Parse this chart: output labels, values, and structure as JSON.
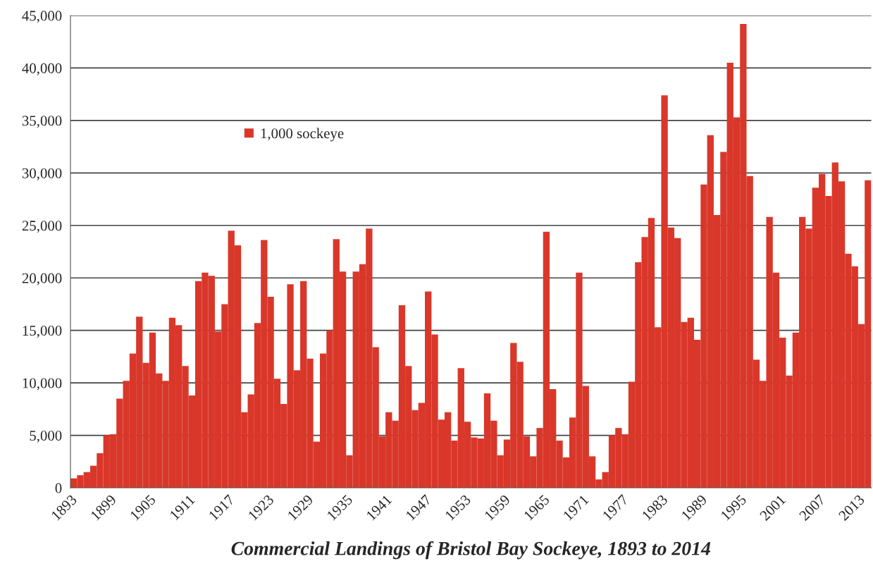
{
  "chart_data": {
    "type": "bar",
    "xlabel": "Commercial Landings of Bristol Bay Sockeye, 1893 to 2014",
    "categories": [
      "1893",
      null,
      null,
      null,
      null,
      null,
      "1899",
      null,
      null,
      null,
      null,
      null,
      "1905",
      null,
      null,
      null,
      null,
      null,
      "1911",
      null,
      null,
      null,
      null,
      null,
      "1917",
      null,
      null,
      null,
      null,
      null,
      "1923",
      null,
      null,
      null,
      null,
      null,
      "1929",
      null,
      null,
      null,
      null,
      null,
      "1935",
      null,
      null,
      null,
      null,
      null,
      "1941",
      null,
      null,
      null,
      null,
      null,
      "1947",
      null,
      null,
      null,
      null,
      null,
      "1953",
      null,
      null,
      null,
      null,
      null,
      "1959",
      null,
      null,
      null,
      null,
      null,
      "1965",
      null,
      null,
      null,
      null,
      null,
      "1971",
      null,
      null,
      null,
      null,
      null,
      "1977",
      null,
      null,
      null,
      null,
      null,
      "1983",
      null,
      null,
      null,
      null,
      null,
      "1989",
      null,
      null,
      null,
      null,
      null,
      "1995",
      null,
      null,
      null,
      null,
      null,
      "2001",
      null,
      null,
      null,
      null,
      null,
      "2007",
      null,
      null,
      null,
      null,
      null,
      "2013",
      null
    ],
    "series": [
      {
        "name": "1,000 sockeye",
        "color": "#d9372a",
        "values": [
          900,
          1200,
          1500,
          2100,
          3300,
          5000,
          5100,
          8500,
          10200,
          12800,
          16300,
          11900,
          14800,
          10900,
          10200,
          16200,
          15500,
          11600,
          8800,
          19700,
          20500,
          20200,
          14900,
          17500,
          24500,
          23100,
          7200,
          8900,
          15700,
          23600,
          18200,
          10400,
          8000,
          19400,
          11200,
          19700,
          12300,
          4400,
          12800,
          15000,
          23700,
          20600,
          3100,
          20600,
          21300,
          24700,
          13400,
          4900,
          7200,
          6400,
          17400,
          11600,
          7400,
          8100,
          18700,
          14600,
          6500,
          7200,
          4500,
          11400,
          6300,
          4800,
          4700,
          9000,
          6400,
          3100,
          4600,
          13800,
          12000,
          4900,
          3000,
          5700,
          24400,
          9400,
          4500,
          2900,
          6700,
          20500,
          9700,
          3000,
          800,
          1500,
          5000,
          5700,
          5100,
          10100,
          21500,
          23900,
          25700,
          15300,
          37400,
          24800,
          23800,
          15800,
          16200,
          14100,
          28900,
          33600,
          26000,
          32000,
          40500,
          35300,
          44200,
          29700,
          12200,
          10200,
          25800,
          20500,
          14300,
          10700,
          14800,
          25800,
          24700,
          28600,
          29900,
          27800,
          31000,
          29200,
          22300,
          21100,
          15600,
          29300
        ]
      }
    ],
    "ylim": [
      0,
      45000
    ],
    "yticks": [
      {
        "value": 0,
        "label": "0"
      },
      {
        "value": 5000,
        "label": "5,000"
      },
      {
        "value": 10000,
        "label": "10,000"
      },
      {
        "value": 15000,
        "label": "15,000"
      },
      {
        "value": 20000,
        "label": "20,000"
      },
      {
        "value": 25000,
        "label": "25,000"
      },
      {
        "value": 30000,
        "label": "30,000"
      },
      {
        "value": 35000,
        "label": "35,000"
      },
      {
        "value": 40000,
        "label": "40,000"
      },
      {
        "value": 45000,
        "label": "45,000"
      }
    ],
    "grid": "y",
    "legend": "top left"
  }
}
